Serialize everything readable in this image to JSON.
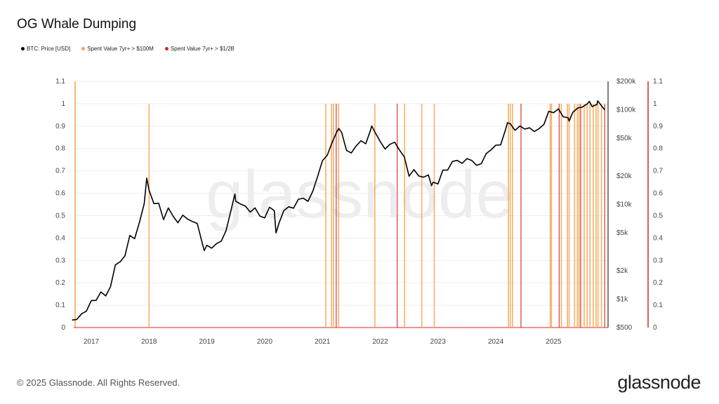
{
  "chart_data": {
    "type": "line",
    "title": "OG Whale Dumping",
    "legend": [
      {
        "name": "BTC: Price [USD]",
        "color": "#000000"
      },
      {
        "name": "Spent Value 7yr+ > $100M",
        "color": "#f4a24c"
      },
      {
        "name": "Spent Value 7yr+ > $1/2B",
        "color": "#d62728"
      }
    ],
    "legend_placement": "top-left",
    "x_ticks": [
      "2017",
      "2018",
      "2019",
      "2020",
      "2021",
      "2022",
      "2023",
      "2024",
      "2025"
    ],
    "left_axis": {
      "ylim": [
        0,
        1.1
      ],
      "ticks": [
        "0",
        "0.1",
        "0.2",
        "0.3",
        "0.4",
        "0.5",
        "0.6",
        "0.7",
        "0.8",
        "0.9",
        "1",
        "1.1"
      ],
      "color": "#f4a24c"
    },
    "right_axis_ratio": {
      "ylim": [
        0,
        1.1
      ],
      "ticks": [
        "0",
        "0.1",
        "0.2",
        "0.3",
        "0.4",
        "0.5",
        "0.6",
        "0.7",
        "0.8",
        "0.9",
        "1",
        "1.1"
      ],
      "color": "#d62728"
    },
    "price_axis": {
      "scale": "log",
      "ylim": [
        500,
        200000
      ],
      "ticks": [
        {
          "v": 500,
          "l": "$500"
        },
        {
          "v": 1000,
          "l": "$1k"
        },
        {
          "v": 2000,
          "l": "$2k"
        },
        {
          "v": 5000,
          "l": "$5k"
        },
        {
          "v": 10000,
          "l": "$10k"
        },
        {
          "v": 20000,
          "l": "$20k"
        },
        {
          "v": 50000,
          "l": "$50k"
        },
        {
          "v": 100000,
          "l": "$100k"
        },
        {
          "v": 200000,
          "l": "$200k"
        }
      ],
      "color": "#000000"
    },
    "grid": true,
    "price_series": [
      [
        "2016-09-01",
        600
      ],
      [
        "2016-10-01",
        610
      ],
      [
        "2016-11-01",
        700
      ],
      [
        "2016-12-01",
        745
      ],
      [
        "2017-01-01",
        963
      ],
      [
        "2017-02-01",
        970
      ],
      [
        "2017-03-01",
        1190
      ],
      [
        "2017-04-01",
        1080
      ],
      [
        "2017-05-01",
        1350
      ],
      [
        "2017-06-01",
        2300
      ],
      [
        "2017-07-01",
        2480
      ],
      [
        "2017-08-01",
        2870
      ],
      [
        "2017-09-01",
        4700
      ],
      [
        "2017-10-01",
        4340
      ],
      [
        "2017-11-01",
        6470
      ],
      [
        "2017-12-01",
        10200
      ],
      [
        "2017-12-17",
        19000
      ],
      [
        "2018-01-01",
        14150
      ],
      [
        "2018-02-01",
        10200
      ],
      [
        "2018-03-01",
        10300
      ],
      [
        "2018-04-01",
        6900
      ],
      [
        "2018-05-01",
        9200
      ],
      [
        "2018-06-01",
        7500
      ],
      [
        "2018-07-01",
        6400
      ],
      [
        "2018-08-01",
        7700
      ],
      [
        "2018-09-01",
        7000
      ],
      [
        "2018-10-01",
        6600
      ],
      [
        "2018-11-01",
        6300
      ],
      [
        "2018-12-01",
        4000
      ],
      [
        "2018-12-15",
        3250
      ],
      [
        "2019-01-01",
        3700
      ],
      [
        "2019-02-01",
        3450
      ],
      [
        "2019-03-01",
        3850
      ],
      [
        "2019-04-01",
        4100
      ],
      [
        "2019-05-01",
        5300
      ],
      [
        "2019-06-01",
        8600
      ],
      [
        "2019-06-26",
        12900
      ],
      [
        "2019-07-01",
        10800
      ],
      [
        "2019-08-01",
        10100
      ],
      [
        "2019-09-01",
        9600
      ],
      [
        "2019-10-01",
        8300
      ],
      [
        "2019-11-01",
        9200
      ],
      [
        "2019-12-01",
        7550
      ],
      [
        "2020-01-01",
        7200
      ],
      [
        "2020-02-01",
        9350
      ],
      [
        "2020-03-01",
        8600
      ],
      [
        "2020-03-12",
        5000
      ],
      [
        "2020-04-01",
        6400
      ],
      [
        "2020-05-01",
        8600
      ],
      [
        "2020-06-01",
        9450
      ],
      [
        "2020-07-01",
        9140
      ],
      [
        "2020-08-01",
        11350
      ],
      [
        "2020-09-01",
        11650
      ],
      [
        "2020-10-01",
        10780
      ],
      [
        "2020-11-01",
        13800
      ],
      [
        "2020-12-01",
        19700
      ],
      [
        "2021-01-01",
        29000
      ],
      [
        "2021-02-01",
        33100
      ],
      [
        "2021-03-01",
        45100
      ],
      [
        "2021-04-01",
        58800
      ],
      [
        "2021-04-13",
        63500
      ],
      [
        "2021-05-01",
        57700
      ],
      [
        "2021-06-01",
        37300
      ],
      [
        "2021-07-01",
        35000
      ],
      [
        "2021-08-01",
        41500
      ],
      [
        "2021-09-01",
        47100
      ],
      [
        "2021-10-01",
        43800
      ],
      [
        "2021-11-01",
        61300
      ],
      [
        "2021-11-08",
        67500
      ],
      [
        "2021-12-01",
        57000
      ],
      [
        "2022-01-01",
        46300
      ],
      [
        "2022-02-01",
        38500
      ],
      [
        "2022-03-01",
        43200
      ],
      [
        "2022-04-01",
        45500
      ],
      [
        "2022-05-01",
        37700
      ],
      [
        "2022-06-01",
        31800
      ],
      [
        "2022-07-01",
        19900
      ],
      [
        "2022-08-01",
        23300
      ],
      [
        "2022-09-01",
        20000
      ],
      [
        "2022-10-01",
        19400
      ],
      [
        "2022-11-01",
        20500
      ],
      [
        "2022-11-21",
        15800
      ],
      [
        "2022-12-01",
        17200
      ],
      [
        "2023-01-01",
        16500
      ],
      [
        "2023-02-01",
        23100
      ],
      [
        "2023-03-01",
        23100
      ],
      [
        "2023-04-01",
        28500
      ],
      [
        "2023-05-01",
        29200
      ],
      [
        "2023-06-01",
        27200
      ],
      [
        "2023-07-01",
        30500
      ],
      [
        "2023-08-01",
        29200
      ],
      [
        "2023-09-01",
        25900
      ],
      [
        "2023-10-01",
        27000
      ],
      [
        "2023-11-01",
        34500
      ],
      [
        "2023-12-01",
        37700
      ],
      [
        "2024-01-01",
        42300
      ],
      [
        "2024-02-01",
        42600
      ],
      [
        "2024-03-01",
        61200
      ],
      [
        "2024-03-14",
        73000
      ],
      [
        "2024-04-01",
        71300
      ],
      [
        "2024-05-01",
        60600
      ],
      [
        "2024-06-01",
        67500
      ],
      [
        "2024-07-01",
        62700
      ],
      [
        "2024-08-01",
        64600
      ],
      [
        "2024-09-01",
        59000
      ],
      [
        "2024-10-01",
        63300
      ],
      [
        "2024-11-01",
        70200
      ],
      [
        "2024-12-01",
        96400
      ],
      [
        "2025-01-01",
        93400
      ],
      [
        "2025-02-01",
        102400
      ],
      [
        "2025-03-01",
        84400
      ],
      [
        "2025-04-01",
        82500
      ],
      [
        "2025-04-08",
        76000
      ],
      [
        "2025-05-01",
        94200
      ],
      [
        "2025-06-01",
        104600
      ],
      [
        "2025-07-01",
        107100
      ],
      [
        "2025-08-01",
        115700
      ],
      [
        "2025-08-14",
        123000
      ],
      [
        "2025-09-01",
        108200
      ],
      [
        "2025-10-01",
        114000
      ],
      [
        "2025-10-06",
        124500
      ],
      [
        "2025-11-01",
        109500
      ],
      [
        "2025-11-20",
        100000
      ]
    ],
    "events_100M": [
      "2018-01-01",
      "2021-01-22",
      "2021-02-28",
      "2021-03-10",
      "2021-04-12",
      "2021-11-28",
      "2022-06-03",
      "2022-09-20",
      "2022-12-08",
      "2024-03-20",
      "2024-04-01",
      "2024-04-15",
      "2024-12-10",
      "2024-12-18",
      "2025-02-20",
      "2025-03-28",
      "2025-04-08",
      "2025-05-12",
      "2025-05-30",
      "2025-06-10",
      "2025-07-12",
      "2025-07-30",
      "2025-08-18",
      "2025-09-08",
      "2025-09-26",
      "2025-10-08",
      "2025-10-30"
    ],
    "events_half_B": [
      "2021-03-27",
      "2022-04-17",
      "2024-06-08",
      "2025-02-06",
      "2025-06-20",
      "2025-11-20"
    ],
    "event_value": 1
  },
  "footer": {
    "copyright": "© 2025 Glassnode. All Rights Reserved.",
    "logo": "glassnode"
  },
  "watermark": "glassnode"
}
